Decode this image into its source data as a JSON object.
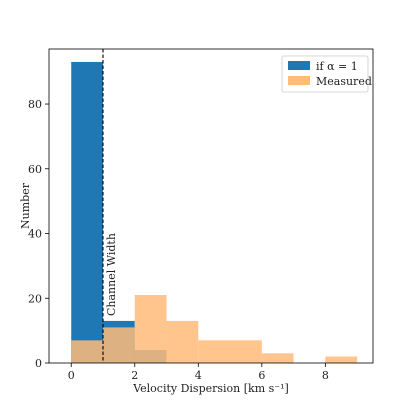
{
  "chart_data": {
    "type": "bar",
    "xlabel": "Velocity Dispersion [km s⁻¹]",
    "ylabel": "Number",
    "xlim": [
      -0.7,
      9.5
    ],
    "ylim": [
      0,
      97
    ],
    "xticks": [
      0,
      2,
      4,
      6,
      8
    ],
    "yticks": [
      0,
      20,
      40,
      60,
      80
    ],
    "grid": false,
    "legend_position": "top-right",
    "series": [
      {
        "name": "if α = 1",
        "color": "#1f77b4",
        "bins": [
          {
            "x0": 0,
            "x1": 1,
            "count": 93
          },
          {
            "x0": 1,
            "x1": 2,
            "count": 13
          },
          {
            "x0": 2,
            "x1": 3,
            "count": 4
          }
        ]
      },
      {
        "name": "Measured",
        "color": "#ffbb78",
        "bins": [
          {
            "x0": 0,
            "x1": 1,
            "count": 7
          },
          {
            "x0": 1,
            "x1": 2,
            "count": 11
          },
          {
            "x0": 2,
            "x1": 3,
            "count": 21
          },
          {
            "x0": 3,
            "x1": 4,
            "count": 13
          },
          {
            "x0": 4,
            "x1": 6,
            "count": 7
          },
          {
            "x0": 6,
            "x1": 7,
            "count": 3
          },
          {
            "x0": 8,
            "x1": 9,
            "count": 2
          }
        ]
      }
    ],
    "annotations": [
      {
        "type": "vline",
        "x": 1,
        "style": "dashed",
        "label": "Channel Width"
      }
    ]
  }
}
